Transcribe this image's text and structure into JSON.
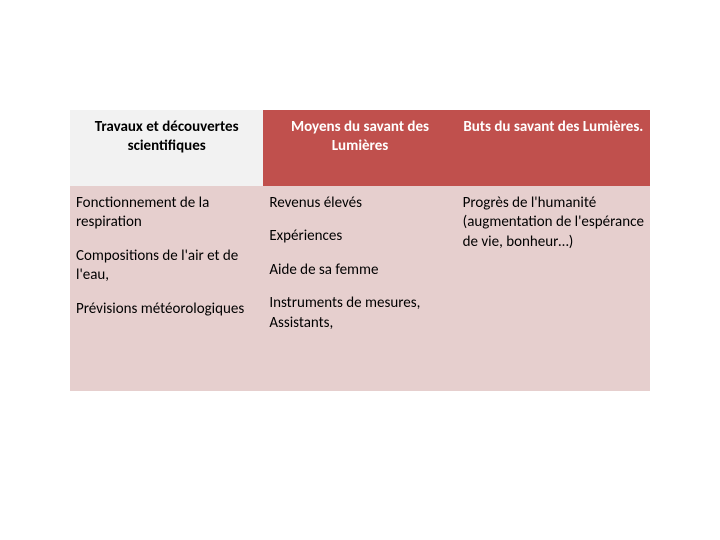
{
  "table": {
    "header_bg_color": "#c0504d",
    "header_col1_bg_color": "#f2f2f2",
    "body_bg_color": "#e6cfce",
    "header_text_color": "#ffffff",
    "header_col1_text_color": "#000000",
    "body_text_color": "#000000",
    "font_size_header": 15,
    "font_size_body": 15,
    "headers": {
      "col1": "Travaux et découvertes scientifiques",
      "col2": "Moyens du savant des Lumières",
      "col3": "Buts du savant des Lumières."
    },
    "col1_items": [
      "Fonctionnement de la respiration",
      "Compositions de l'air et de l'eau,",
      "Prévisions météorologiques"
    ],
    "col2_items": [
      "Revenus élevés",
      "Expériences",
      "Aide de sa femme",
      "Instruments de mesures, Assistants,"
    ],
    "col3_items": [
      "Progrès de l'humanité (augmentation de l'espérance de vie, bonheur…)"
    ]
  }
}
